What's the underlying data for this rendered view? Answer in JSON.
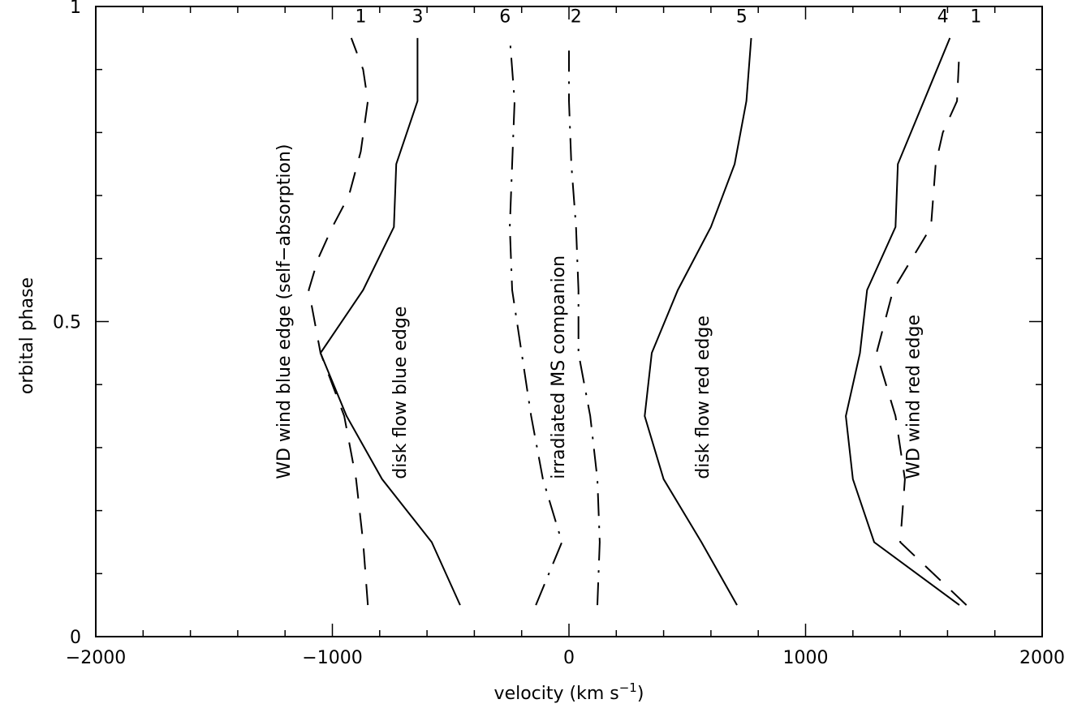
{
  "chart_data": {
    "type": "line",
    "title": "",
    "xlabel": "velocity (km s",
    "xlabel_sup": "−1",
    "xlabel_end": ")",
    "ylabel": "orbital phase",
    "xlim": [
      -2000,
      2000
    ],
    "ylim": [
      0,
      1
    ],
    "x_major_ticks": [
      -2000,
      -1000,
      0,
      1000,
      2000
    ],
    "x_tick_labels": [
      "−2000",
      "−1000",
      "0",
      "1000",
      "2000"
    ],
    "x_minor_step": 200,
    "y_major_ticks": [
      0,
      0.5,
      1
    ],
    "y_tick_labels": [
      "0",
      "0.5",
      "1"
    ],
    "y_minor_step": 0.1,
    "grid": false,
    "series": [
      {
        "name": "1",
        "style": "dashed",
        "x": [
          -850,
          -870,
          -900,
          -950,
          -1050,
          -1100,
          -1060,
          -1000,
          -930,
          -880,
          -850,
          -870,
          -920
        ],
        "y": [
          0.05,
          0.15,
          0.25,
          0.35,
          0.45,
          0.55,
          0.6,
          0.65,
          0.7,
          0.77,
          0.85,
          0.9,
          0.95
        ]
      },
      {
        "name": "3",
        "style": "solid",
        "x": [
          -460,
          -580,
          -790,
          -940,
          -1050,
          -870,
          -740,
          -730,
          -640,
          -640
        ],
        "y": [
          0.05,
          0.15,
          0.25,
          0.35,
          0.45,
          0.55,
          0.65,
          0.75,
          0.85,
          0.95
        ]
      },
      {
        "name": "6",
        "style": "dashdot",
        "x": [
          -140,
          -30,
          -110,
          -160,
          -200,
          -240,
          -250,
          -240,
          -230,
          -250
        ],
        "y": [
          0.05,
          0.15,
          0.25,
          0.35,
          0.45,
          0.55,
          0.65,
          0.75,
          0.85,
          0.95
        ]
      },
      {
        "name": "2",
        "style": "dashdot",
        "x": [
          120,
          130,
          120,
          90,
          40,
          40,
          30,
          10,
          0,
          0
        ],
        "y": [
          0.05,
          0.15,
          0.25,
          0.35,
          0.45,
          0.55,
          0.65,
          0.75,
          0.85,
          0.93
        ]
      },
      {
        "name": "5",
        "style": "solid",
        "x": [
          710,
          560,
          400,
          320,
          350,
          460,
          600,
          700,
          750,
          770
        ],
        "y": [
          0.05,
          0.15,
          0.25,
          0.35,
          0.45,
          0.55,
          0.65,
          0.75,
          0.85,
          0.95
        ]
      },
      {
        "name": "4",
        "style": "solid",
        "x": [
          1650,
          1290,
          1200,
          1170,
          1230,
          1260,
          1380,
          1390,
          1500,
          1610
        ],
        "y": [
          0.05,
          0.15,
          0.25,
          0.35,
          0.45,
          0.55,
          0.65,
          0.75,
          0.85,
          0.95
        ]
      },
      {
        "name": "1",
        "style": "dashed",
        "x": [
          1680,
          1400,
          1420,
          1380,
          1300,
          1370,
          1530,
          1550,
          1580,
          1640,
          1650
        ],
        "y": [
          0.05,
          0.15,
          0.25,
          0.35,
          0.45,
          0.55,
          0.65,
          0.75,
          0.8,
          0.85,
          0.93
        ]
      }
    ],
    "curve_numbers": [
      {
        "text": "1",
        "x": -880,
        "y": 0.985
      },
      {
        "text": "3",
        "x": -640,
        "y": 0.985
      },
      {
        "text": "6",
        "x": -270,
        "y": 0.985
      },
      {
        "text": "2",
        "x": 30,
        "y": 0.985
      },
      {
        "text": "5",
        "x": 730,
        "y": 0.985
      },
      {
        "text": "4",
        "x": 1580,
        "y": 0.985
      },
      {
        "text": "1",
        "x": 1720,
        "y": 0.985
      }
    ],
    "annotations": [
      {
        "text": "WD wind blue edge (self−absorption)",
        "x": -1180,
        "y": 0.25,
        "rotation": -90
      },
      {
        "text": "disk flow blue edge",
        "x": -690,
        "y": 0.25,
        "rotation": -90
      },
      {
        "text": "irradiated MS companion",
        "x": -20,
        "y": 0.25,
        "rotation": -90
      },
      {
        "text": "disk flow red edge",
        "x": 590,
        "y": 0.25,
        "rotation": -90
      },
      {
        "text": "WD wind red edge",
        "x": 1480,
        "y": 0.25,
        "rotation": -90
      }
    ]
  }
}
